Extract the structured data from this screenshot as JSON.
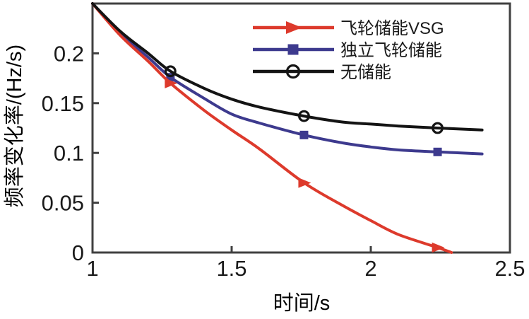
{
  "figure": {
    "background": "#ffffff",
    "axis_color": "#404040",
    "text_color": "#1a1a1a"
  },
  "chart_data": {
    "type": "line",
    "title": "",
    "xlabel": "时间/s",
    "ylabel": "频率变化率/(Hz/s)",
    "xlim": [
      1,
      2.5
    ],
    "ylim": [
      0,
      0.25
    ],
    "xticks": [
      {
        "v": 1,
        "label": "1"
      },
      {
        "v": 1.5,
        "label": "1.5"
      },
      {
        "v": 2,
        "label": "2"
      },
      {
        "v": 2.5,
        "label": "2.5"
      }
    ],
    "yticks": [
      {
        "v": 0,
        "label": "0"
      },
      {
        "v": 0.05,
        "label": "0.05"
      },
      {
        "v": 0.1,
        "label": "0.1"
      },
      {
        "v": 0.15,
        "label": "0.15"
      },
      {
        "v": 0.2,
        "label": "0.2"
      }
    ],
    "grid": false,
    "legend_position": "top-right-inside",
    "draw_order": [
      1,
      0,
      2
    ],
    "series": [
      {
        "key": "flywheel-vsg",
        "name": "飞轮储能VSG",
        "color": "#dd3a2c",
        "marker": "triangle-right",
        "points": [
          [
            1,
            0.25
          ],
          [
            1.1,
            0.218
          ],
          [
            1.2,
            0.192
          ],
          [
            1.28,
            0.17
          ],
          [
            1.4,
            0.143
          ],
          [
            1.5,
            0.123
          ],
          [
            1.6,
            0.104
          ],
          [
            1.76,
            0.07
          ],
          [
            1.9,
            0.047
          ],
          [
            2,
            0.032
          ],
          [
            2.1,
            0.018
          ],
          [
            2.24,
            0.005
          ],
          [
            2.29,
            0
          ]
        ],
        "marker_points": [
          [
            1.28,
            0.17
          ],
          [
            1.76,
            0.07
          ],
          [
            2.24,
            0.005
          ]
        ]
      },
      {
        "key": "standalone-flywheel",
        "name": "独立飞轮储能",
        "color": "#3d3a8e",
        "marker": "square",
        "points": [
          [
            1,
            0.25
          ],
          [
            1.1,
            0.22
          ],
          [
            1.2,
            0.196
          ],
          [
            1.28,
            0.176
          ],
          [
            1.4,
            0.155
          ],
          [
            1.5,
            0.139
          ],
          [
            1.6,
            0.13
          ],
          [
            1.76,
            0.118
          ],
          [
            1.9,
            0.11
          ],
          [
            2,
            0.106
          ],
          [
            2.1,
            0.103
          ],
          [
            2.24,
            0.101
          ],
          [
            2.4,
            0.099
          ]
        ],
        "marker_points": [
          [
            1.28,
            0.176
          ],
          [
            1.76,
            0.118
          ],
          [
            2.24,
            0.101
          ]
        ]
      },
      {
        "key": "no-storage",
        "name": "无储能",
        "color": "#141414",
        "marker": "circle-open",
        "points": [
          [
            1,
            0.25
          ],
          [
            1.1,
            0.222
          ],
          [
            1.2,
            0.2
          ],
          [
            1.28,
            0.182
          ],
          [
            1.4,
            0.165
          ],
          [
            1.5,
            0.154
          ],
          [
            1.6,
            0.146
          ],
          [
            1.76,
            0.137
          ],
          [
            1.9,
            0.131
          ],
          [
            2,
            0.129
          ],
          [
            2.1,
            0.127
          ],
          [
            2.24,
            0.125
          ],
          [
            2.4,
            0.123
          ]
        ],
        "marker_points": [
          [
            1.28,
            0.182
          ],
          [
            1.76,
            0.137
          ],
          [
            2.24,
            0.125
          ]
        ]
      }
    ]
  }
}
